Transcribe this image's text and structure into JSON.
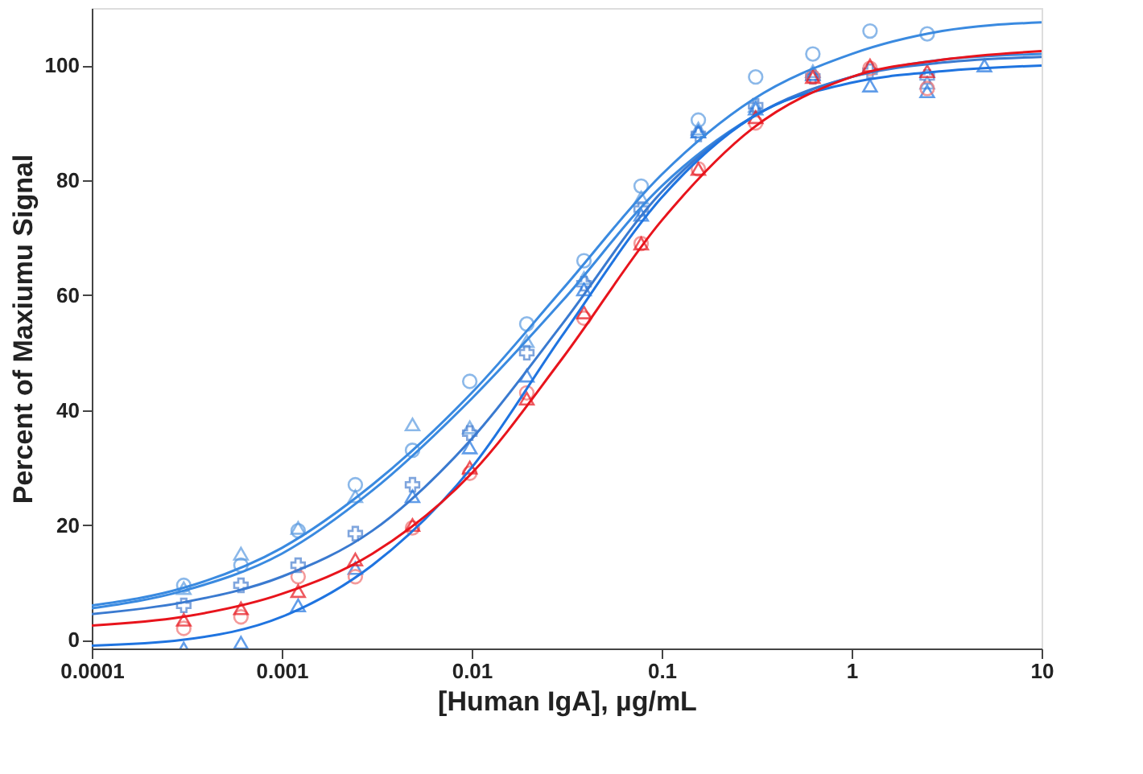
{
  "chart_data": {
    "type": "scatter",
    "xlabel": "[Human IgA], µg/mL",
    "ylabel": "Percent of Maxiumu Signal",
    "log": "x",
    "xlim": [
      0.0001,
      10
    ],
    "xticks": [
      0.0001,
      0.001,
      0.01,
      0.1,
      1,
      10
    ],
    "ylim": [
      -1.5,
      110
    ],
    "yticks": [
      0,
      20,
      40,
      60,
      80,
      100
    ],
    "grid": false,
    "x": [
      0.000305,
      0.00061,
      0.00122,
      0.00244,
      0.00488,
      0.00977,
      0.0195,
      0.039,
      0.078,
      0.156,
      0.3125,
      0.625,
      1.25,
      2.5,
      5
    ],
    "series": [
      {
        "marker": "circle",
        "color": "#5b9be0",
        "values": [
          9.5,
          13,
          19,
          27,
          33,
          45,
          55,
          66,
          79,
          90.5,
          98,
          102,
          106,
          105.5,
          null
        ]
      },
      {
        "marker": "triangle",
        "color": "#5b9be0",
        "values": [
          9,
          15,
          19.5,
          25,
          37.5,
          37,
          52,
          63,
          77,
          89,
          93,
          99,
          null,
          97,
          null
        ]
      },
      {
        "marker": "cross",
        "color": "#4a7fd0",
        "values": [
          6,
          9.5,
          13,
          18.5,
          27,
          36,
          50,
          62,
          75,
          88,
          93,
          98,
          99,
          98,
          null
        ]
      },
      {
        "marker": "triangle",
        "color": "#1f74e0",
        "values": [
          -1.5,
          -0.5,
          6,
          12.5,
          25,
          33.5,
          46,
          61,
          74,
          88.5,
          92.5,
          98.5,
          96.5,
          95.5,
          100
        ]
      },
      {
        "marker": "circle",
        "color": "#f07070",
        "values": [
          2,
          4,
          11,
          11,
          19.5,
          29,
          43,
          56,
          69,
          82,
          90,
          98,
          99.5,
          96,
          null
        ]
      },
      {
        "marker": "triangle",
        "color": "#e8141c",
        "values": [
          3.5,
          5.5,
          8.5,
          14,
          20,
          30,
          42,
          57,
          69,
          82,
          91,
          98,
          100,
          99,
          null
        ]
      },
      {
        "type": "line",
        "marker": "none",
        "color": "#3a8ae0",
        "x": [
          0.0001,
          0.0003,
          0.001,
          0.003,
          0.01,
          0.03,
          0.1,
          0.3,
          1,
          3,
          10
        ],
        "values": [
          6,
          9,
          16,
          27,
          43,
          61,
          81,
          94,
          102,
          106,
          107.5
        ]
      },
      {
        "type": "line",
        "marker": "none",
        "color": "#3a8ae0",
        "x": [
          0.0001,
          0.0003,
          0.001,
          0.003,
          0.01,
          0.03,
          0.1,
          0.3,
          1,
          3,
          10
        ],
        "values": [
          5.5,
          8.5,
          15,
          26,
          42,
          59,
          79,
          91,
          98,
          101,
          102
        ]
      },
      {
        "type": "line",
        "marker": "none",
        "color": "#3a7ad0",
        "x": [
          0.0001,
          0.0003,
          0.001,
          0.003,
          0.01,
          0.03,
          0.1,
          0.3,
          1,
          3,
          10
        ],
        "values": [
          4.5,
          6.5,
          11,
          19,
          35,
          55,
          78,
          91,
          98,
          100.5,
          101.5
        ]
      },
      {
        "type": "line",
        "marker": "none",
        "color": "#1f74e0",
        "x": [
          0.0001,
          0.0003,
          0.001,
          0.003,
          0.01,
          0.03,
          0.1,
          0.3,
          1,
          3,
          10
        ],
        "values": [
          -1,
          0,
          4,
          13,
          30,
          53,
          77,
          91,
          97,
          99,
          100
        ]
      },
      {
        "type": "line",
        "marker": "none",
        "color": "#e8141c",
        "x": [
          0.0001,
          0.0003,
          0.001,
          0.003,
          0.01,
          0.03,
          0.1,
          0.3,
          1,
          3,
          10
        ],
        "values": [
          2.5,
          4,
          8,
          15,
          29,
          49,
          73,
          89,
          98,
          101,
          102.5
        ]
      }
    ]
  }
}
